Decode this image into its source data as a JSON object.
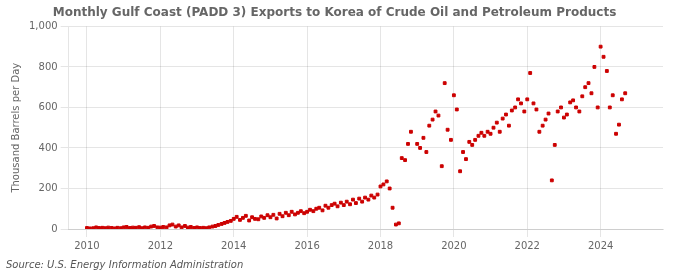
{
  "chart_data": {
    "type": "scatter",
    "title": "Monthly Gulf Coast (PADD 3) Exports to Korea of Crude Oil and Petroleum Products",
    "ylabel": "Thousand Barrels per Day",
    "annotation": "Source: U.S. Energy Information Administration",
    "color": "#cc0000",
    "marker": "square",
    "grid": true,
    "xlim": [
      2009.5,
      2025.7
    ],
    "xticks": [
      2010,
      2012,
      2014,
      2016,
      2018,
      2020,
      2022,
      2024
    ],
    "ylim": [
      0,
      1000
    ],
    "yticks": [
      0,
      200,
      400,
      600,
      800,
      {
        "value": 1000,
        "label": "1,000"
      }
    ],
    "x": [
      2010.0,
      2010.08,
      2010.17,
      2010.25,
      2010.33,
      2010.42,
      2010.5,
      2010.58,
      2010.67,
      2010.75,
      2010.83,
      2010.92,
      2011.0,
      2011.08,
      2011.17,
      2011.25,
      2011.33,
      2011.42,
      2011.5,
      2011.58,
      2011.67,
      2011.75,
      2011.83,
      2011.92,
      2012.0,
      2012.08,
      2012.17,
      2012.25,
      2012.33,
      2012.42,
      2012.5,
      2012.58,
      2012.67,
      2012.75,
      2012.83,
      2012.92,
      2013.0,
      2013.08,
      2013.17,
      2013.25,
      2013.33,
      2013.42,
      2013.5,
      2013.58,
      2013.67,
      2013.75,
      2013.83,
      2013.92,
      2014.0,
      2014.08,
      2014.17,
      2014.25,
      2014.33,
      2014.42,
      2014.5,
      2014.58,
      2014.67,
      2014.75,
      2014.83,
      2014.92,
      2015.0,
      2015.08,
      2015.17,
      2015.25,
      2015.33,
      2015.42,
      2015.5,
      2015.58,
      2015.67,
      2015.75,
      2015.83,
      2015.92,
      2016.0,
      2016.08,
      2016.17,
      2016.25,
      2016.33,
      2016.42,
      2016.5,
      2016.58,
      2016.67,
      2016.75,
      2016.83,
      2016.92,
      2017.0,
      2017.08,
      2017.17,
      2017.25,
      2017.33,
      2017.42,
      2017.5,
      2017.58,
      2017.67,
      2017.75,
      2017.83,
      2017.92,
      2018.0,
      2018.08,
      2018.17,
      2018.25,
      2018.33,
      2018.42,
      2018.5,
      2018.58,
      2018.67,
      2018.75,
      2018.83,
      2019.0,
      2019.08,
      2019.17,
      2019.25,
      2019.33,
      2019.42,
      2019.5,
      2019.58,
      2019.67,
      2019.75,
      2019.83,
      2019.92,
      2020.0,
      2020.08,
      2020.17,
      2020.25,
      2020.33,
      2020.42,
      2020.5,
      2020.58,
      2020.67,
      2020.75,
      2020.83,
      2020.92,
      2021.0,
      2021.08,
      2021.17,
      2021.25,
      2021.33,
      2021.42,
      2021.5,
      2021.58,
      2021.67,
      2021.75,
      2021.83,
      2021.92,
      2022.0,
      2022.08,
      2022.17,
      2022.25,
      2022.33,
      2022.42,
      2022.5,
      2022.58,
      2022.67,
      2022.75,
      2022.83,
      2022.92,
      2023.0,
      2023.08,
      2023.17,
      2023.25,
      2023.33,
      2023.42,
      2023.5,
      2023.58,
      2023.67,
      2023.75,
      2023.83,
      2023.92,
      2024.0,
      2024.08,
      2024.17,
      2024.25,
      2024.33,
      2024.42,
      2024.5,
      2024.58,
      2024.67
    ],
    "values": [
      5,
      3,
      4,
      8,
      5,
      6,
      4,
      7,
      5,
      3,
      6,
      4,
      8,
      10,
      5,
      7,
      6,
      9,
      4,
      8,
      6,
      12,
      15,
      8,
      7,
      10,
      8,
      18,
      22,
      12,
      18,
      8,
      15,
      7,
      10,
      5,
      8,
      5,
      6,
      4,
      8,
      12,
      15,
      20,
      25,
      30,
      35,
      40,
      50,
      60,
      45,
      55,
      65,
      42,
      58,
      50,
      48,
      62,
      55,
      68,
      58,
      70,
      52,
      75,
      63,
      80,
      68,
      85,
      72,
      80,
      88,
      78,
      85,
      95,
      88,
      100,
      105,
      92,
      115,
      105,
      118,
      125,
      112,
      130,
      118,
      135,
      122,
      145,
      128,
      150,
      135,
      155,
      145,
      165,
      155,
      170,
      210,
      220,
      235,
      200,
      105,
      22,
      28,
      350,
      340,
      420,
      480,
      420,
      400,
      450,
      380,
      510,
      540,
      580,
      560,
      310,
      720,
      490,
      440,
      660,
      590,
      285,
      380,
      345,
      430,
      415,
      440,
      460,
      475,
      460,
      480,
      470,
      500,
      525,
      480,
      545,
      565,
      510,
      585,
      600,
      640,
      620,
      580,
      640,
      770,
      620,
      590,
      480,
      510,
      540,
      570,
      240,
      415,
      580,
      600,
      550,
      565,
      625,
      635,
      600,
      580,
      655,
      700,
      720,
      670,
      800,
      600,
      900,
      850,
      780,
      600,
      660,
      470,
      515,
      640,
      670
    ]
  }
}
